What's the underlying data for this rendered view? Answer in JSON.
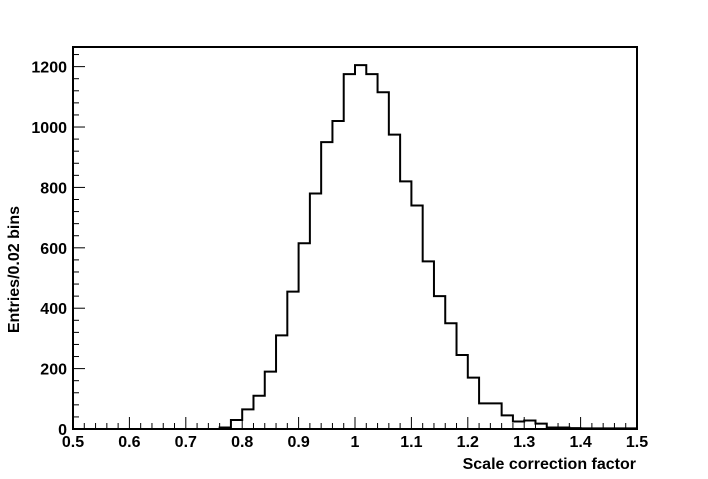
{
  "chart_data": {
    "type": "bar",
    "style": "step-histogram",
    "xlabel": "Scale correction factor",
    "ylabel": "Entries/0.02 bins",
    "xlim": [
      0.5,
      1.5
    ],
    "ylim": [
      0,
      1265
    ],
    "bin_width": 0.02,
    "x_ticks": [
      "0.5",
      "0.6",
      "0.7",
      "0.8",
      "0.9",
      "1",
      "1.1",
      "1.2",
      "1.3",
      "1.4",
      "1.5"
    ],
    "y_ticks": [
      "0",
      "200",
      "400",
      "600",
      "800",
      "1000",
      "1200"
    ],
    "grid": false,
    "legend": "none",
    "bin_edges": [
      0.5,
      0.52,
      0.54,
      0.56,
      0.58,
      0.6,
      0.62,
      0.64,
      0.66,
      0.68,
      0.7,
      0.72,
      0.74,
      0.76,
      0.78,
      0.8,
      0.82,
      0.84,
      0.86,
      0.88,
      0.9,
      0.92,
      0.94,
      0.96,
      0.98,
      1.0,
      1.02,
      1.04,
      1.06,
      1.08,
      1.1,
      1.12,
      1.14,
      1.16,
      1.18,
      1.2,
      1.22,
      1.24,
      1.26,
      1.28,
      1.3,
      1.32,
      1.34,
      1.36,
      1.38,
      1.4,
      1.42,
      1.44,
      1.46,
      1.48,
      1.5
    ],
    "values": [
      0,
      0,
      0,
      0,
      0,
      0,
      0,
      0,
      0,
      0,
      0,
      0,
      0,
      5,
      30,
      65,
      110,
      190,
      310,
      455,
      615,
      780,
      950,
      1020,
      1175,
      1205,
      1175,
      1115,
      975,
      820,
      740,
      555,
      440,
      350,
      245,
      170,
      85,
      85,
      45,
      25,
      28,
      18,
      5,
      5,
      3,
      2,
      2,
      2,
      2,
      2
    ]
  }
}
